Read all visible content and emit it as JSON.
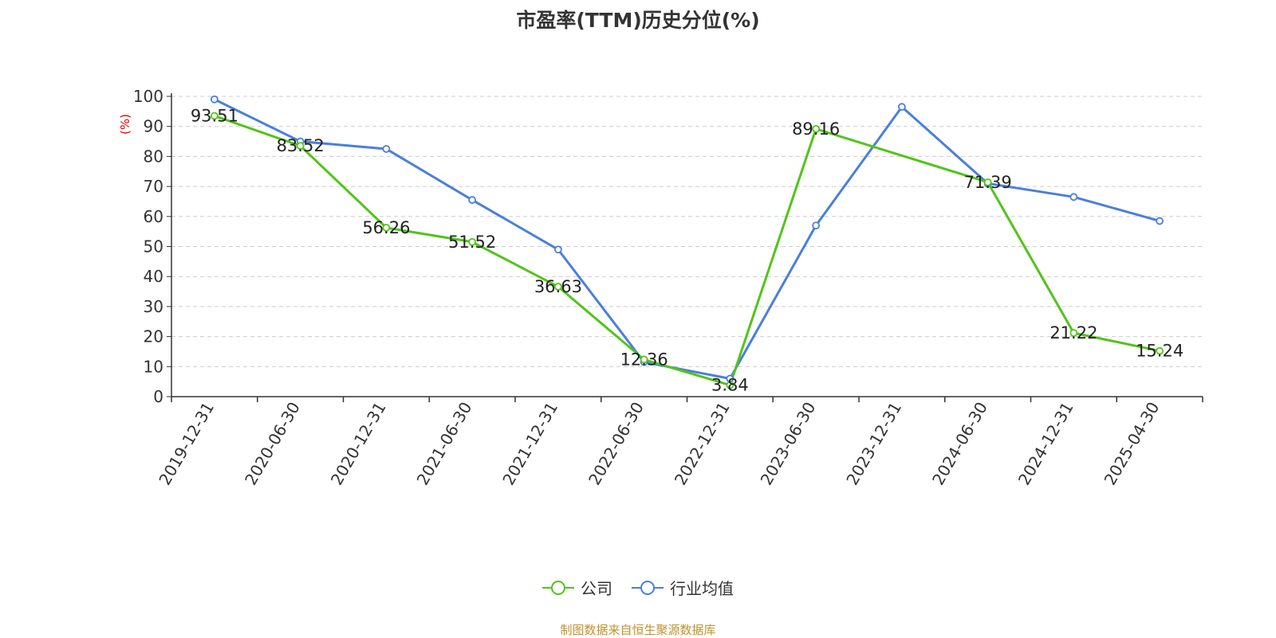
{
  "chart_data": {
    "type": "line",
    "title": "市盈率(TTM)历史分位(%)",
    "ylabel": "(%)",
    "ylim": [
      0,
      100
    ],
    "yticks": [
      "0",
      "10",
      "20",
      "30",
      "40",
      "50",
      "60",
      "70",
      "80",
      "90",
      "100"
    ],
    "grid": true,
    "legend_position": "bottom",
    "categories": [
      "2019-12-31",
      "2020-06-30",
      "2020-12-31",
      "2021-06-30",
      "2021-12-31",
      "2022-06-30",
      "2022-12-31",
      "2023-06-30",
      "2023-12-31",
      "2024-06-30",
      "2024-12-31",
      "2025-04-30"
    ],
    "series": [
      {
        "name": "公司",
        "color": "#52c41a",
        "values": [
          93.51,
          83.52,
          56.26,
          51.52,
          36.63,
          12.36,
          3.84,
          89.16,
          null,
          71.39,
          21.22,
          15.24
        ],
        "labels": [
          "93.51",
          "83.52",
          "56.26",
          "51.52",
          "36.63",
          "12.36",
          "3.84",
          "89.16",
          "",
          "71.39",
          "21.22",
          "15.24"
        ]
      },
      {
        "name": "行业均值",
        "color": "#4a7fdc",
        "values": [
          99,
          85,
          82.5,
          65.5,
          49,
          11.5,
          6,
          57,
          96.5,
          71,
          66.5,
          58.5
        ]
      }
    ]
  },
  "source_text": "制图数据来自恒生聚源数据库"
}
